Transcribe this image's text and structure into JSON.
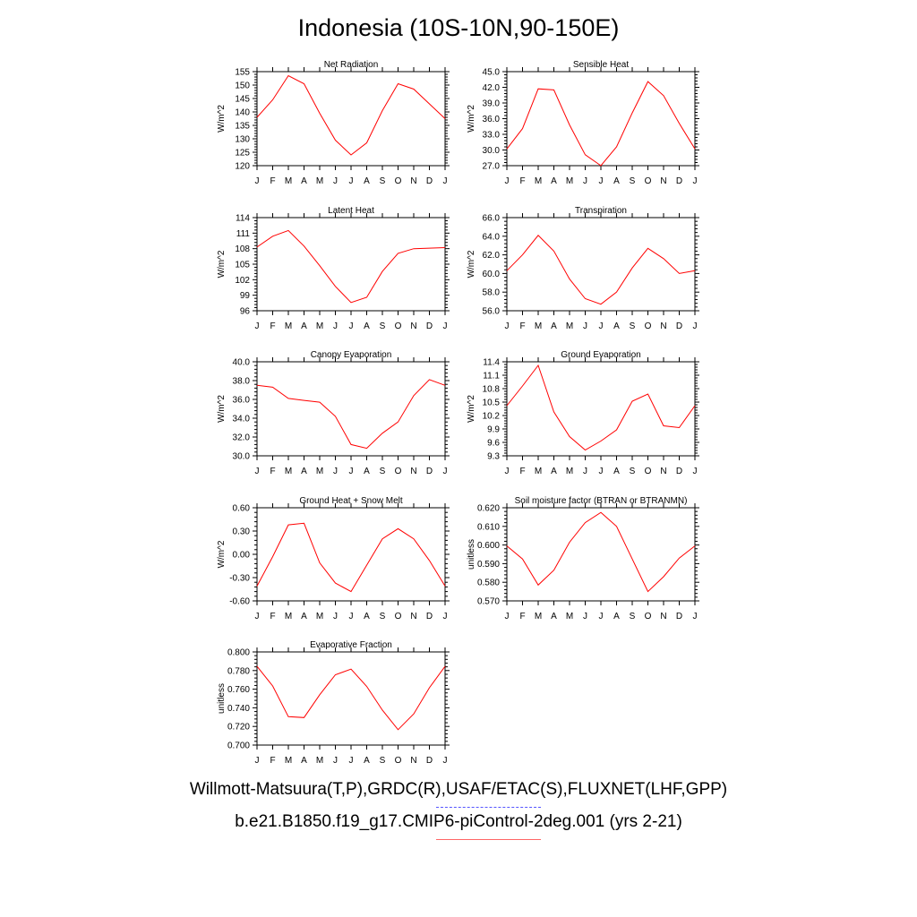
{
  "title": "Indonesia (10S-10N,90-150E)",
  "legend": {
    "observations": "Willmott-Matsuura(T,P),GRDC(R),USAF/ETAC(S),FLUXNET(LHF,GPP)",
    "model": "b.e21.B1850.f19_g17.CMIP6-piControl-2deg.001 (yrs 2-21)",
    "observations_color": "#5555ff",
    "model_color": "#ff0000"
  },
  "chart_data": [
    {
      "type": "line",
      "title": "Net Radiation",
      "ylabel": "W/m^2",
      "categories": [
        "J",
        "F",
        "M",
        "A",
        "M",
        "J",
        "J",
        "A",
        "S",
        "O",
        "N",
        "D",
        "J"
      ],
      "ylim": [
        120,
        155
      ],
      "yticks": [
        "120",
        "125",
        "130",
        "135",
        "140",
        "145",
        "150",
        "155"
      ],
      "series": [
        {
          "color": "#ff0000",
          "values": [
            138,
            144.5,
            153.5,
            150.5,
            139.5,
            129.5,
            124,
            128.5,
            140.5,
            150.5,
            148.5,
            143,
            137.5
          ]
        }
      ]
    },
    {
      "type": "line",
      "title": "Sensible Heat",
      "ylabel": "W/m^2",
      "categories": [
        "J",
        "F",
        "M",
        "A",
        "M",
        "J",
        "J",
        "A",
        "S",
        "O",
        "N",
        "D",
        "J"
      ],
      "ylim": [
        27,
        45
      ],
      "yticks": [
        "27.0",
        "30.0",
        "33.0",
        "36.0",
        "39.0",
        "42.0",
        "45.0"
      ],
      "series": [
        {
          "color": "#ff0000",
          "values": [
            30.2,
            34.1,
            41.7,
            41.5,
            34.8,
            29.1,
            27.0,
            30.6,
            37.1,
            43.1,
            40.4,
            35.1,
            30.2
          ]
        }
      ]
    },
    {
      "type": "line",
      "title": "Latent Heat",
      "ylabel": "W/m^2",
      "categories": [
        "J",
        "F",
        "M",
        "A",
        "M",
        "J",
        "J",
        "A",
        "S",
        "O",
        "N",
        "D",
        "J"
      ],
      "ylim": [
        96,
        114
      ],
      "yticks": [
        "96",
        "99",
        "102",
        "105",
        "108",
        "111",
        "114"
      ],
      "series": [
        {
          "color": "#ff0000",
          "values": [
            108.3,
            110.4,
            111.5,
            108.5,
            104.7,
            100.7,
            97.6,
            98.6,
            103.6,
            107.1,
            108.0,
            108.1,
            108.2
          ]
        }
      ]
    },
    {
      "type": "line",
      "title": "Transpiration",
      "ylabel": "W/m^2",
      "categories": [
        "J",
        "F",
        "M",
        "A",
        "M",
        "J",
        "J",
        "A",
        "S",
        "O",
        "N",
        "D",
        "J"
      ],
      "ylim": [
        56,
        66
      ],
      "yticks": [
        "56.0",
        "58.0",
        "60.0",
        "62.0",
        "64.0",
        "66.0"
      ],
      "series": [
        {
          "color": "#ff0000",
          "values": [
            60.3,
            62.0,
            64.1,
            62.4,
            59.4,
            57.3,
            56.7,
            58.0,
            60.6,
            62.7,
            61.6,
            60.0,
            60.3
          ]
        }
      ]
    },
    {
      "type": "line",
      "title": "Canopy Evaporation",
      "ylabel": "W/m^2",
      "categories": [
        "J",
        "F",
        "M",
        "A",
        "M",
        "J",
        "J",
        "A",
        "S",
        "O",
        "N",
        "D",
        "J"
      ],
      "ylim": [
        30,
        40
      ],
      "yticks": [
        "30.0",
        "32.0",
        "34.0",
        "36.0",
        "38.0",
        "40.0"
      ],
      "series": [
        {
          "color": "#ff0000",
          "values": [
            37.5,
            37.3,
            36.1,
            35.9,
            35.7,
            34.2,
            31.2,
            30.8,
            32.4,
            33.6,
            36.4,
            38.1,
            37.5
          ]
        }
      ]
    },
    {
      "type": "line",
      "title": "Ground Evaporation",
      "ylabel": "W/m^2",
      "categories": [
        "J",
        "F",
        "M",
        "A",
        "M",
        "J",
        "J",
        "A",
        "S",
        "O",
        "N",
        "D",
        "J"
      ],
      "ylim": [
        9.3,
        11.4
      ],
      "yticks": [
        "9.3",
        "9.6",
        "9.9",
        "10.2",
        "10.5",
        "10.8",
        "11.1",
        "11.4"
      ],
      "series": [
        {
          "color": "#ff0000",
          "values": [
            10.42,
            10.86,
            11.32,
            10.28,
            9.73,
            9.43,
            9.63,
            9.88,
            10.52,
            10.68,
            9.97,
            9.93,
            10.42
          ]
        }
      ]
    },
    {
      "type": "line",
      "title": "Ground Heat + Snow Melt",
      "ylabel": "W/m^2",
      "categories": [
        "J",
        "F",
        "M",
        "A",
        "M",
        "J",
        "J",
        "A",
        "S",
        "O",
        "N",
        "D",
        "J"
      ],
      "ylim": [
        -0.6,
        0.6
      ],
      "yticks": [
        "-0.60",
        "-0.30",
        "0.00",
        "0.30",
        "0.60"
      ],
      "series": [
        {
          "color": "#ff0000",
          "values": [
            -0.41,
            -0.03,
            0.38,
            0.4,
            -0.11,
            -0.37,
            -0.48,
            -0.14,
            0.2,
            0.33,
            0.2,
            -0.08,
            -0.41
          ]
        }
      ]
    },
    {
      "type": "line",
      "title": "Soil moisture factor (BTRAN or BTRANMN)",
      "ylabel": "unitless",
      "categories": [
        "J",
        "F",
        "M",
        "A",
        "M",
        "J",
        "J",
        "A",
        "S",
        "O",
        "N",
        "D",
        "J"
      ],
      "ylim": [
        0.57,
        0.62
      ],
      "yticks": [
        "0.570",
        "0.580",
        "0.590",
        "0.600",
        "0.610",
        "0.620"
      ],
      "series": [
        {
          "color": "#ff0000",
          "values": [
            0.5995,
            0.5925,
            0.5785,
            0.5865,
            0.6015,
            0.612,
            0.6175,
            0.61,
            0.5925,
            0.575,
            0.583,
            0.593,
            0.5995
          ]
        }
      ]
    },
    {
      "type": "line",
      "title": "Evaporative Fraction",
      "ylabel": "unitless",
      "categories": [
        "J",
        "F",
        "M",
        "A",
        "M",
        "J",
        "J",
        "A",
        "S",
        "O",
        "N",
        "D",
        "J"
      ],
      "ylim": [
        0.7,
        0.8
      ],
      "yticks": [
        "0.700",
        "0.720",
        "0.740",
        "0.760",
        "0.780",
        "0.800"
      ],
      "series": [
        {
          "color": "#ff0000",
          "values": [
            0.7845,
            0.7635,
            0.7305,
            0.7295,
            0.754,
            0.7755,
            0.7815,
            0.763,
            0.7375,
            0.7165,
            0.7335,
            0.7615,
            0.7845
          ]
        }
      ]
    }
  ]
}
